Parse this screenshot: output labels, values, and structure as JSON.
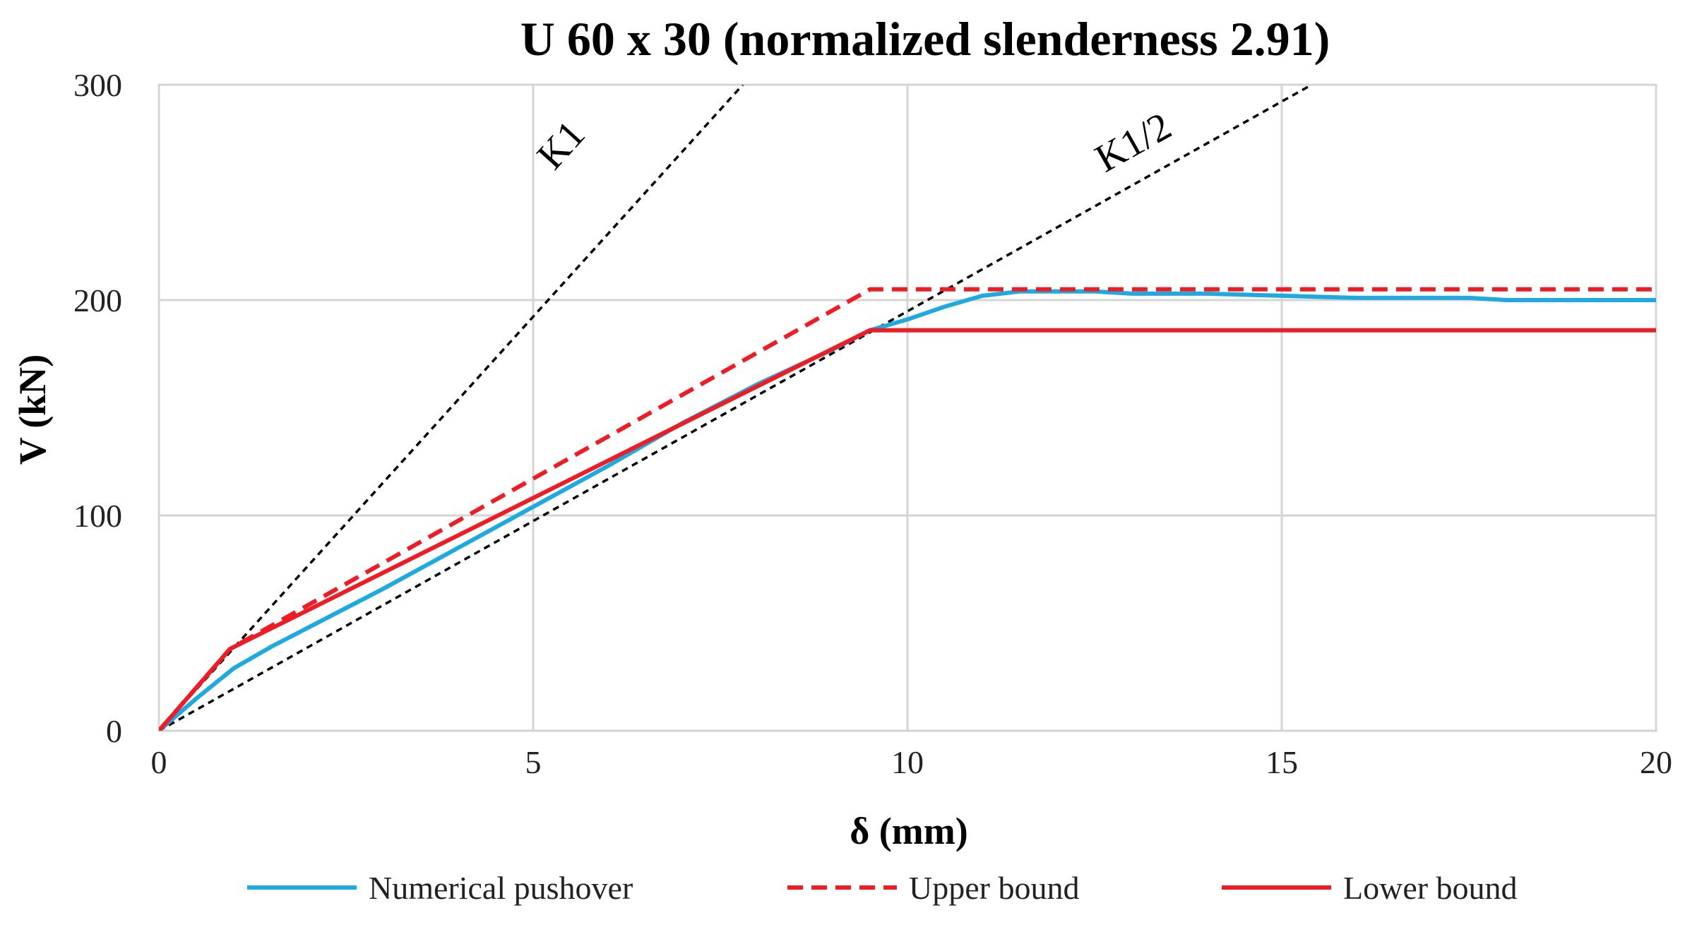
{
  "chart_data": {
    "type": "line",
    "title": "U 60 x 30 (normalized slenderness  2.91)",
    "xlabel": "δ (mm)",
    "ylabel": "V (kN)",
    "xlim": [
      0,
      20
    ],
    "ylim": [
      0,
      300
    ],
    "xticks": [
      "0",
      "5",
      "10",
      "15",
      "20"
    ],
    "yticks": [
      "0",
      "100",
      "200",
      "300"
    ],
    "grid": true,
    "legend_position": "bottom",
    "series": [
      {
        "name": "Numerical pushover",
        "color": "#1fa9e1",
        "style": "solid",
        "x": [
          0,
          0.5,
          1.0,
          1.5,
          2.0,
          3.0,
          4.0,
          5.0,
          6.0,
          7.0,
          8.0,
          9.0,
          9.5,
          10.0,
          10.5,
          11.0,
          11.5,
          12.0,
          12.5,
          13.0,
          14.0,
          15.0,
          16.0,
          17.0,
          17.5,
          18.0,
          19.0,
          20.0
        ],
        "y": [
          0,
          15,
          29,
          39,
          48,
          66,
          85,
          104,
          123,
          143,
          161,
          177,
          186,
          191,
          197,
          202,
          204,
          204,
          204,
          203,
          203,
          202,
          201,
          201,
          201,
          200,
          200,
          200
        ]
      },
      {
        "name": "Upper bound",
        "color": "#ee1c24",
        "style": "dashed",
        "x": [
          0,
          0.95,
          9.5,
          20
        ],
        "y": [
          0,
          38,
          205,
          205
        ]
      },
      {
        "name": "Lower bound",
        "color": "#ee1c24",
        "style": "solid",
        "x": [
          0,
          0.95,
          9.5,
          20
        ],
        "y": [
          0,
          38,
          186,
          186
        ]
      },
      {
        "name": "K1",
        "color": "#000000",
        "style": "dotted",
        "x": [
          0,
          7.8
        ],
        "y": [
          0,
          300
        ]
      },
      {
        "name": "K1/2",
        "color": "#000000",
        "style": "dotted",
        "x": [
          0,
          15.4
        ],
        "y": [
          0,
          300
        ]
      }
    ],
    "annotations": [
      {
        "text": "K1",
        "near_series": "K1"
      },
      {
        "text": "K1/2",
        "near_series": "K1/2"
      }
    ]
  }
}
